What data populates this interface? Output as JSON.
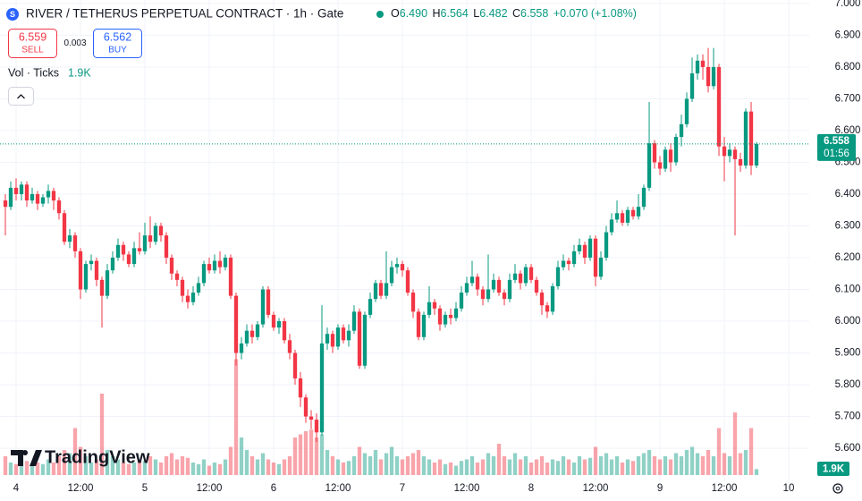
{
  "header": {
    "symbol": "RIVER / TETHERUS PERPETUAL CONTRACT · 1h · Gate",
    "ohlc": [
      {
        "key": "O",
        "value": "6.490"
      },
      {
        "key": "H",
        "value": "6.564"
      },
      {
        "key": "L",
        "value": "6.482"
      },
      {
        "key": "C",
        "value": "6.558"
      }
    ],
    "change": "+0.070 (+1.08%)"
  },
  "trade": {
    "sell_price": "6.559",
    "sell": "SELL",
    "spread": "0.003",
    "buy_price": "6.562",
    "buy": "BUY"
  },
  "volume_legend": {
    "name": "Vol · Ticks",
    "value": "1.9K"
  },
  "price_tag": {
    "price": "6.558",
    "countdown": "01:56"
  },
  "logo": "TradingView",
  "chart_data": {
    "type": "candlestick",
    "up_color": "#089981",
    "down_color": "#f23645",
    "grid": true,
    "xlim": [
      -1,
      149.83
    ],
    "xticks": [
      {
        "value": 2,
        "label": "4"
      },
      {
        "value": 14,
        "label": "12:00"
      },
      {
        "value": 26,
        "label": "5"
      },
      {
        "value": 38,
        "label": "12:00"
      },
      {
        "value": 50,
        "label": "6"
      },
      {
        "value": 62,
        "label": "12:00"
      },
      {
        "value": 74,
        "label": "7"
      },
      {
        "value": 86,
        "label": "12:00"
      },
      {
        "value": 98,
        "label": "8"
      },
      {
        "value": 110,
        "label": "12:00"
      },
      {
        "value": 122,
        "label": "9"
      },
      {
        "value": 134,
        "label": "12:00"
      },
      {
        "value": 146,
        "label": "10"
      }
    ],
    "ylim": [
      5.496,
      7.011
    ],
    "yticks": [
      {
        "value": 5.6,
        "label": "5.600"
      },
      {
        "value": 5.7,
        "label": "5.700"
      },
      {
        "value": 5.8,
        "label": "5.800"
      },
      {
        "value": 5.9,
        "label": "5.900"
      },
      {
        "value": 6,
        "label": "6.000"
      },
      {
        "value": 6.1,
        "label": "6.100"
      },
      {
        "value": 6.2,
        "label": "6.200"
      },
      {
        "value": 6.3,
        "label": "6.300"
      },
      {
        "value": 6.4,
        "label": "6.400"
      },
      {
        "value": 6.5,
        "label": "6.500"
      },
      {
        "value": 6.6,
        "label": "6.600"
      },
      {
        "value": 6.7,
        "label": "6.700"
      },
      {
        "value": 6.8,
        "label": "6.800"
      },
      {
        "value": 6.9,
        "label": "6.900"
      },
      {
        "value": 7,
        "label": "7.000"
      }
    ],
    "open": [
      6.38,
      6.36,
      6.42,
      6.4,
      6.43,
      6.38,
      6.4,
      6.37,
      6.39,
      6.41,
      6.38,
      6.34,
      6.25,
      6.27,
      6.22,
      6.1,
      6.18,
      6.19,
      6.13,
      6.08,
      6.16,
      6.2,
      6.24,
      6.21,
      6.18,
      6.23,
      6.22,
      6.27,
      6.25,
      6.3,
      6.27,
      6.2,
      6.15,
      6.13,
      6.08,
      6.06,
      6.09,
      6.12,
      6.18,
      6.16,
      6.19,
      6.17,
      6.2,
      6.08,
      5.9,
      5.93,
      5.97,
      5.95,
      5.99,
      6.1,
      6.02,
      5.98,
      6.0,
      5.94,
      5.9,
      5.82,
      5.76,
      5.7,
      5.69,
      5.65,
      5.93,
      5.96,
      5.92,
      5.98,
      5.94,
      5.97,
      6.03,
      5.86,
      6.02,
      6.07,
      6.12,
      6.08,
      6.12,
      6.17,
      6.18,
      6.16,
      6.09,
      6.03,
      5.95,
      6.02,
      6.06,
      6.04,
      5.99,
      6.02,
      6.01,
      6.04,
      6.09,
      6.12,
      6.14,
      6.1,
      6.07,
      6.1,
      6.13,
      6.09,
      6.07,
      6.13,
      6.15,
      6.12,
      6.17,
      6.13,
      6.09,
      6.05,
      6.03,
      6.11,
      6.17,
      6.19,
      6.18,
      6.22,
      6.24,
      6.2,
      6.26,
      6.14,
      6.2,
      6.28,
      6.32,
      6.34,
      6.31,
      6.35,
      6.33,
      6.36,
      6.42,
      6.56,
      6.5,
      6.48,
      6.54,
      6.5,
      6.58,
      6.62,
      6.7,
      6.78,
      6.82,
      6.8,
      6.74,
      6.8,
      6.55,
      6.52,
      6.54,
      6.51,
      6.49,
      6.66,
      6.49
    ],
    "high": [
      6.4,
      6.44,
      6.45,
      6.44,
      6.44,
      6.42,
      6.41,
      6.4,
      6.43,
      6.42,
      6.39,
      6.35,
      6.29,
      6.28,
      6.23,
      6.19,
      6.21,
      6.2,
      6.14,
      6.18,
      6.22,
      6.26,
      6.25,
      6.22,
      6.25,
      6.28,
      6.31,
      6.33,
      6.31,
      6.31,
      6.28,
      6.21,
      6.16,
      6.14,
      6.1,
      6.11,
      6.14,
      6.19,
      6.2,
      6.21,
      6.22,
      6.21,
      6.21,
      6.09,
      5.95,
      5.99,
      5.99,
      6.0,
      6.11,
      6.11,
      6.03,
      6.01,
      6.01,
      5.96,
      5.91,
      5.84,
      5.77,
      5.72,
      5.71,
      6.05,
      5.98,
      5.97,
      5.99,
      5.99,
      5.99,
      6.05,
      6.04,
      6.03,
      6.09,
      6.13,
      6.13,
      6.22,
      6.19,
      6.2,
      6.19,
      6.17,
      6.1,
      6.04,
      6.03,
      6.11,
      6.07,
      6.05,
      6.03,
      6.04,
      6.06,
      6.11,
      6.14,
      6.19,
      6.15,
      6.11,
      6.21,
      6.15,
      6.14,
      6.1,
      6.15,
      6.18,
      6.16,
      6.18,
      6.18,
      6.14,
      6.1,
      6.06,
      6.12,
      6.19,
      6.21,
      6.2,
      6.24,
      6.26,
      6.25,
      6.27,
      6.27,
      6.22,
      6.3,
      6.34,
      6.38,
      6.35,
      6.36,
      6.36,
      6.4,
      6.43,
      6.69,
      6.57,
      6.52,
      6.55,
      6.56,
      6.59,
      6.65,
      6.72,
      6.83,
      6.84,
      6.84,
      6.86,
      6.86,
      6.81,
      6.58,
      6.56,
      6.55,
      6.53,
      6.67,
      6.69,
      6.564
    ],
    "low": [
      6.27,
      6.35,
      6.38,
      6.38,
      6.36,
      6.37,
      6.35,
      6.36,
      6.37,
      6.35,
      6.32,
      6.24,
      6.23,
      6.2,
      6.07,
      6.09,
      6.16,
      6.11,
      5.98,
      6.07,
      6.15,
      6.19,
      6.19,
      6.17,
      6.17,
      6.21,
      6.21,
      6.23,
      6.24,
      6.25,
      6.18,
      6.13,
      6.11,
      6.06,
      6.04,
      6.05,
      6.08,
      6.11,
      6.15,
      6.15,
      6.15,
      6.16,
      6.07,
      5.86,
      5.88,
      5.92,
      5.93,
      5.94,
      5.98,
      6.01,
      5.97,
      5.96,
      5.93,
      5.88,
      5.8,
      5.73,
      5.68,
      5.66,
      5.62,
      5.64,
      5.91,
      5.9,
      5.91,
      5.93,
      5.92,
      5.96,
      5.85,
      5.85,
      6.01,
      6.06,
      6.07,
      6.07,
      6.11,
      6.15,
      6.14,
      6.08,
      6.01,
      5.94,
      5.94,
      6.01,
      6.02,
      5.97,
      5.98,
      5.99,
      6.0,
      6.03,
      6.08,
      6.11,
      6.08,
      6.05,
      6.06,
      6.09,
      6.08,
      6.05,
      6.06,
      6.12,
      6.1,
      6.11,
      6.12,
      6.08,
      6.02,
      6.01,
      6.02,
      6.1,
      6.16,
      6.16,
      6.17,
      6.21,
      6.18,
      6.19,
      6.11,
      6.13,
      6.19,
      6.27,
      6.31,
      6.3,
      6.3,
      6.32,
      6.32,
      6.35,
      6.41,
      6.48,
      6.46,
      6.47,
      6.47,
      6.49,
      6.55,
      6.61,
      6.69,
      6.76,
      6.76,
      6.72,
      6.73,
      6.52,
      6.44,
      6.5,
      6.27,
      6.47,
      6.48,
      6.46,
      6.482
    ],
    "close": [
      6.36,
      6.42,
      6.4,
      6.43,
      6.38,
      6.4,
      6.37,
      6.39,
      6.41,
      6.38,
      6.34,
      6.25,
      6.27,
      6.22,
      6.1,
      6.18,
      6.19,
      6.13,
      6.08,
      6.16,
      6.2,
      6.24,
      6.21,
      6.18,
      6.23,
      6.22,
      6.27,
      6.25,
      6.3,
      6.27,
      6.2,
      6.15,
      6.13,
      6.08,
      6.06,
      6.09,
      6.12,
      6.18,
      6.16,
      6.19,
      6.17,
      6.2,
      6.08,
      5.9,
      5.93,
      5.97,
      5.95,
      5.99,
      6.1,
      6.02,
      5.98,
      6.0,
      5.94,
      5.9,
      5.82,
      5.76,
      5.7,
      5.69,
      5.65,
      5.93,
      5.96,
      5.92,
      5.98,
      5.94,
      5.97,
      6.03,
      5.86,
      6.02,
      6.07,
      6.12,
      6.08,
      6.12,
      6.17,
      6.18,
      6.16,
      6.09,
      6.03,
      5.95,
      6.02,
      6.06,
      6.04,
      5.99,
      6.02,
      6.01,
      6.04,
      6.09,
      6.12,
      6.14,
      6.1,
      6.07,
      6.1,
      6.13,
      6.09,
      6.07,
      6.13,
      6.15,
      6.12,
      6.17,
      6.13,
      6.09,
      6.05,
      6.03,
      6.11,
      6.17,
      6.19,
      6.18,
      6.22,
      6.24,
      6.2,
      6.26,
      6.14,
      6.2,
      6.28,
      6.32,
      6.34,
      6.31,
      6.35,
      6.33,
      6.36,
      6.42,
      6.56,
      6.5,
      6.48,
      6.54,
      6.5,
      6.58,
      6.62,
      6.7,
      6.78,
      6.82,
      6.8,
      6.74,
      6.8,
      6.55,
      6.52,
      6.54,
      6.51,
      6.49,
      6.66,
      6.49,
      6.558
    ],
    "volume": [
      6000,
      4000,
      3500,
      5000,
      4500,
      3000,
      4000,
      3500,
      5000,
      4000,
      6000,
      8000,
      7000,
      15000,
      9000,
      6000,
      4000,
      5000,
      26000,
      8000,
      6000,
      5000,
      4000,
      3500,
      4000,
      5000,
      4500,
      6000,
      5000,
      4000,
      6000,
      7000,
      5000,
      6000,
      5500,
      4000,
      3500,
      5000,
      3000,
      4000,
      3500,
      5000,
      9000,
      37000,
      12000,
      8000,
      6000,
      5000,
      7000,
      5000,
      4000,
      3500,
      5000,
      6000,
      12000,
      13000,
      14000,
      14500,
      12000,
      13000,
      8000,
      6000,
      5000,
      4000,
      4500,
      6000,
      9000,
      7000,
      6000,
      8000,
      5000,
      7000,
      9000,
      6000,
      5000,
      6000,
      7000,
      8000,
      6000,
      5000,
      4000,
      5000,
      3500,
      4000,
      3000,
      4500,
      5000,
      6000,
      4000,
      5000,
      7000,
      6000,
      10000,
      6000,
      5000,
      7000,
      5000,
      6000,
      4000,
      5000,
      6000,
      4000,
      5000,
      4500,
      6000,
      5000,
      4000,
      6000,
      5000,
      5500,
      9000,
      6000,
      7000,
      5000,
      6000,
      4000,
      5000,
      4500,
      6000,
      7000,
      8000,
      6000,
      5000,
      6000,
      5000,
      7000,
      6000,
      8000,
      9000,
      7000,
      6000,
      8000,
      6000,
      15000,
      7000,
      6000,
      20000,
      7000,
      8000,
      15000,
      1900
    ]
  }
}
